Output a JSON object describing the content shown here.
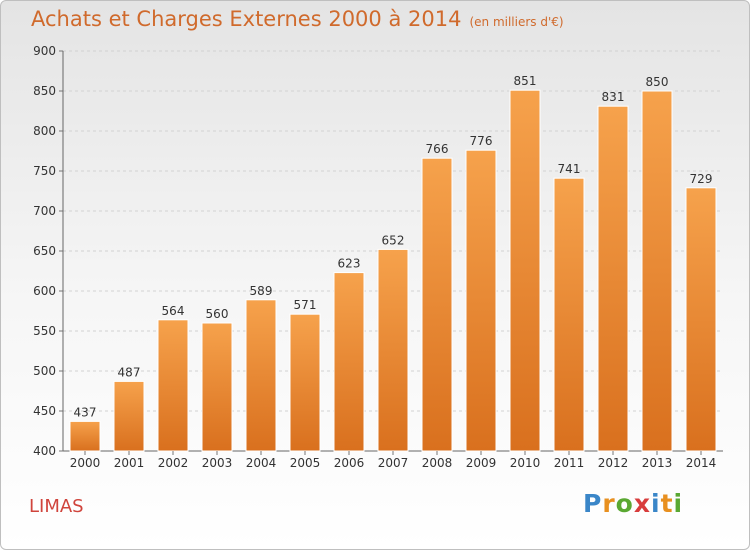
{
  "header": {
    "title": "Achats et Charges Externes 2000 à 2014",
    "subtitle": "(en milliers d'€)"
  },
  "footer": {
    "place": "LIMAS",
    "logo": {
      "letters": [
        "P",
        "r",
        "o",
        "x",
        "i",
        "t",
        "i"
      ],
      "colors": [
        "#3a86c8",
        "#e89020",
        "#5aa832",
        "#d83c3c",
        "#3a86c8",
        "#e89020",
        "#5aa832"
      ]
    }
  },
  "chart_data": {
    "type": "bar",
    "title": "Achats et Charges Externes 2000 à 2014",
    "subtitle": "(en milliers d'€)",
    "categories": [
      "2000",
      "2001",
      "2002",
      "2003",
      "2004",
      "2005",
      "2006",
      "2007",
      "2008",
      "2009",
      "2010",
      "2011",
      "2012",
      "2013",
      "2014"
    ],
    "values": [
      437,
      487,
      564,
      560,
      589,
      571,
      623,
      652,
      766,
      776,
      851,
      741,
      831,
      850,
      729
    ],
    "ylim": [
      400,
      900
    ],
    "yticks": [
      400,
      450,
      500,
      550,
      600,
      650,
      700,
      750,
      800,
      850,
      900
    ],
    "grid": true,
    "bar_color_top": "#f6a24c",
    "bar_color_bottom": "#d9701e"
  }
}
